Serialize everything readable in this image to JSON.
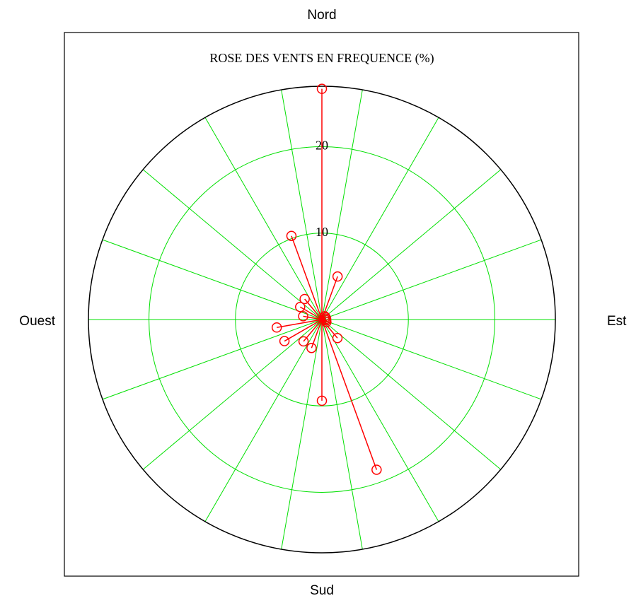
{
  "chart_data": {
    "type": "polar",
    "title": "ROSE DES VENTS EN FREQUENCE (%)",
    "direction_labels": {
      "north": "Nord",
      "east": "Est",
      "south": "Sud",
      "west": "Ouest"
    },
    "theta": [
      0,
      20,
      40,
      60,
      80,
      100,
      120,
      140,
      160,
      180,
      200,
      220,
      240,
      260,
      280,
      300,
      320,
      340
    ],
    "values": [
      26.7,
      5.3,
      0.5,
      0.5,
      0.5,
      0.5,
      0.6,
      2.8,
      18.5,
      9.4,
      3.5,
      3.3,
      5.0,
      5.3,
      2.2,
      2.9,
      3.1,
      10.3
    ],
    "color": "#ff0000",
    "rlim": [
      0,
      27
    ],
    "rticks": [
      10,
      20
    ],
    "thetagrid": [
      10,
      30,
      50,
      70,
      90,
      110,
      130,
      150,
      170,
      190,
      210,
      230,
      250,
      270,
      290,
      310,
      330,
      350
    ],
    "grid": true,
    "grid_color": "#00e000"
  }
}
